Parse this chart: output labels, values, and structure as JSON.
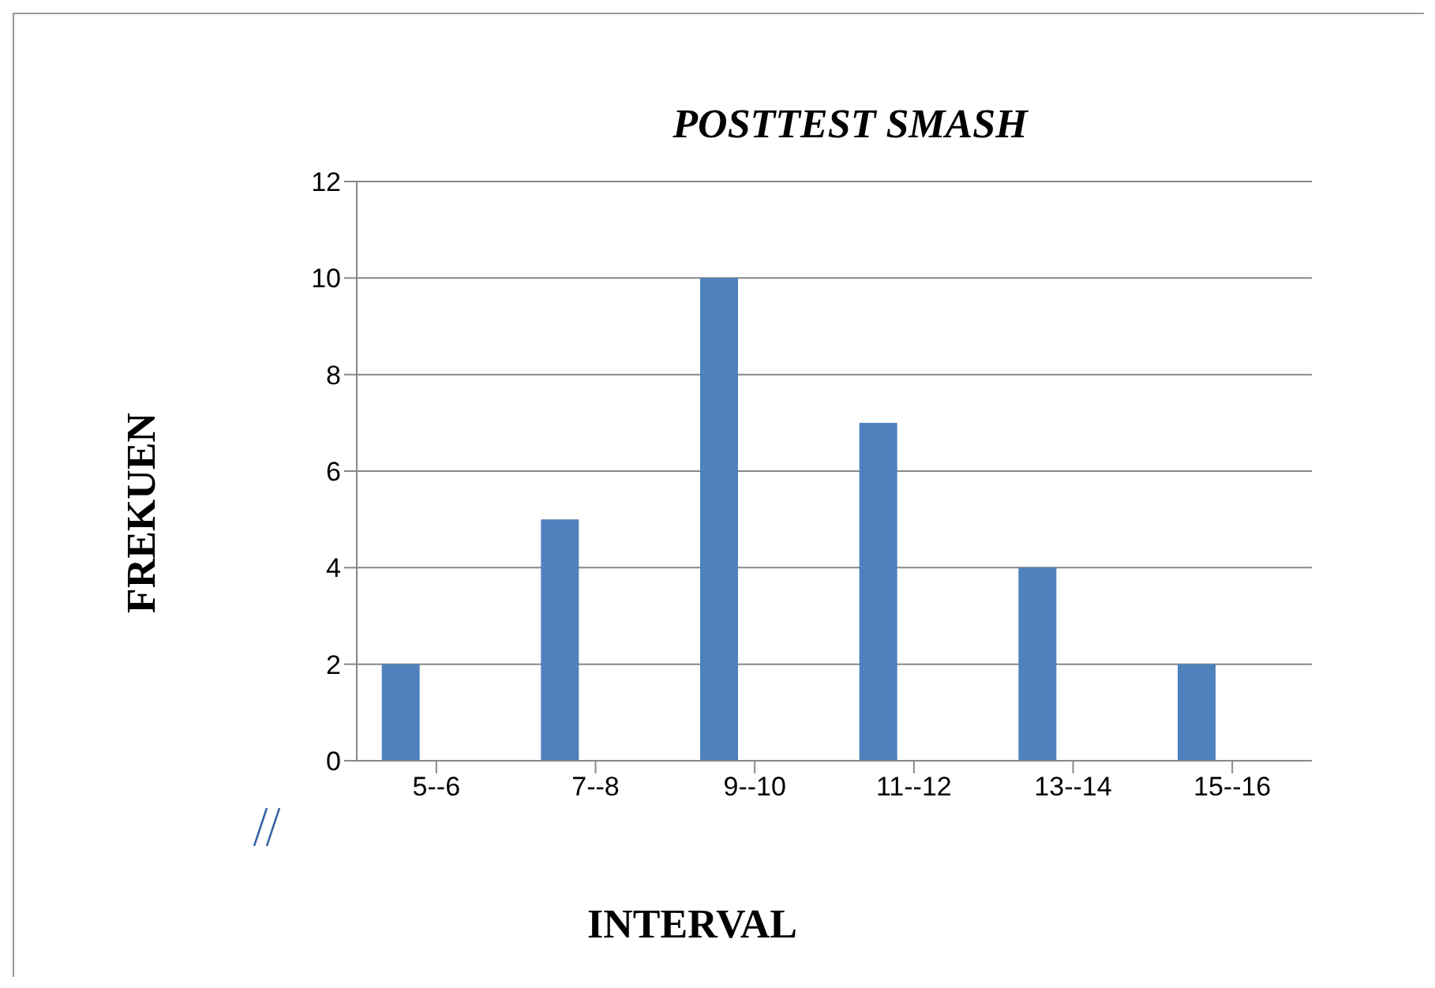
{
  "chart_data": {
    "type": "bar",
    "title": "POSTTEST SMASH",
    "xlabel": "INTERVAL",
    "ylabel": "FREKUEN",
    "categories": [
      "5--6",
      "7--8",
      "9--10",
      "11--12",
      "13--14",
      "15--16"
    ],
    "values": [
      2,
      5,
      10,
      7,
      4,
      2
    ],
    "color": "#4f81bd",
    "ylim": [
      0,
      12
    ],
    "yticks": [
      0,
      2,
      4,
      6,
      8,
      10,
      12
    ],
    "grid": "y",
    "legend": false
  }
}
